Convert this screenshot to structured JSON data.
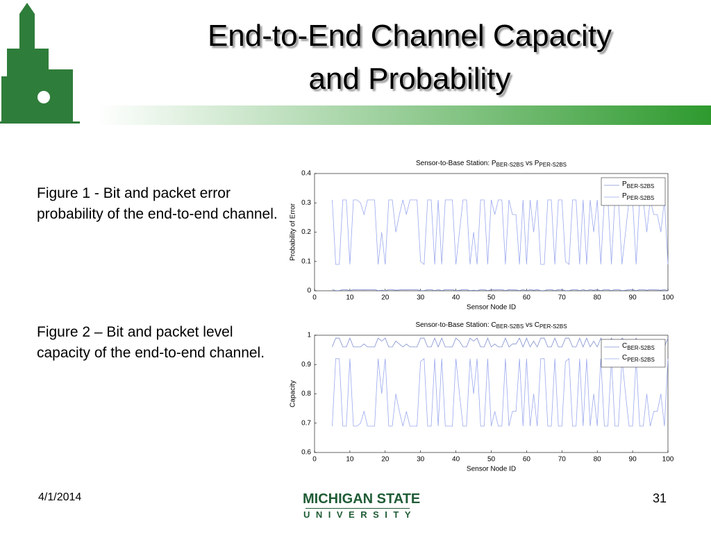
{
  "slide": {
    "title": [
      "End-to-End Channel Capacity",
      "and Probability"
    ],
    "captions": [
      "Figure 1 - Bit and packet error probability of the end-to-end channel.",
      "Figure 2 – Bit and packet level capacity of the end-to-end channel."
    ],
    "date": "4/1/2014",
    "page": "31",
    "logo": [
      "MICHIGAN STATE",
      "UNIVERSITY"
    ]
  },
  "chart_data": [
    {
      "type": "line",
      "title": [
        "Sensor-to-Base Station: P",
        "BER-S2BS",
        " vs P",
        "PER-S2BS"
      ],
      "x_label": "Sensor Node ID",
      "y_label": "Probability of Error",
      "xlim": [
        0,
        100
      ],
      "xticks": [
        0,
        10,
        20,
        30,
        40,
        50,
        60,
        70,
        80,
        90,
        100
      ],
      "ylim": [
        0,
        0.4
      ],
      "yticks": [
        0,
        0.1,
        0.2,
        0.3,
        0.4
      ],
      "legend": "upper right",
      "x": [
        5,
        6,
        7,
        8,
        9,
        10,
        11,
        12,
        13,
        14,
        15,
        16,
        17,
        18,
        19,
        20,
        21,
        22,
        23,
        24,
        25,
        26,
        27,
        28,
        29,
        30,
        31,
        32,
        33,
        34,
        35,
        36,
        37,
        38,
        39,
        40,
        41,
        42,
        43,
        44,
        45,
        46,
        47,
        48,
        49,
        50,
        51,
        52,
        53,
        54,
        55,
        56,
        57,
        58,
        59,
        60,
        61,
        62,
        63,
        64,
        65,
        66,
        67,
        68,
        69,
        70,
        71,
        72,
        73,
        74,
        75,
        76,
        77,
        78,
        79,
        80,
        81,
        82,
        83,
        84,
        85,
        86,
        87,
        88,
        89,
        90,
        91,
        92,
        93,
        94,
        95,
        96,
        97,
        98,
        99,
        100
      ],
      "series": [
        {
          "name": "P",
          "subscript": "BER-S2BS",
          "color": "#7f8fcf",
          "values": [
            0.004,
            0.001,
            0.001,
            0.004,
            0.004,
            0.001,
            0.004,
            0.004,
            0.004,
            0.003,
            0.004,
            0.004,
            0.004,
            0.001,
            0.002,
            0.001,
            0.004,
            0.004,
            0.002,
            0.003,
            0.004,
            0.003,
            0.004,
            0.004,
            0.004,
            0.001,
            0.001,
            0.004,
            0.004,
            0.001,
            0.004,
            0.001,
            0.004,
            0.004,
            0.004,
            0.001,
            0.002,
            0.004,
            0.004,
            0.001,
            0.002,
            0.001,
            0.004,
            0.004,
            0.001,
            0.004,
            0.003,
            0.004,
            0.004,
            0.001,
            0.004,
            0.003,
            0.003,
            0.001,
            0.004,
            0.001,
            0.004,
            0.002,
            0.004,
            0.001,
            0.001,
            0.004,
            0.004,
            0.001,
            0.004,
            0.004,
            0.001,
            0.001,
            0.004,
            0.004,
            0.001,
            0.004,
            0.001,
            0.004,
            0.002,
            0.004,
            0.001,
            0.004,
            0.004,
            0.001,
            0.004,
            0.004,
            0.001,
            0.002,
            0.004,
            0.004,
            0.001,
            0.004,
            0.004,
            0.002,
            0.004,
            0.003,
            0.003,
            0.002,
            0.004,
            0.001
          ]
        },
        {
          "name": "P",
          "subscript": "PER-S2BS",
          "color": "#9aa8ee",
          "values": [
            0.31,
            0.09,
            0.09,
            0.31,
            0.31,
            0.09,
            0.31,
            0.31,
            0.3,
            0.26,
            0.31,
            0.31,
            0.31,
            0.09,
            0.2,
            0.09,
            0.31,
            0.31,
            0.2,
            0.26,
            0.31,
            0.26,
            0.31,
            0.31,
            0.31,
            0.1,
            0.09,
            0.31,
            0.31,
            0.09,
            0.31,
            0.09,
            0.31,
            0.31,
            0.31,
            0.09,
            0.2,
            0.31,
            0.31,
            0.09,
            0.2,
            0.09,
            0.31,
            0.31,
            0.09,
            0.31,
            0.26,
            0.31,
            0.31,
            0.09,
            0.31,
            0.26,
            0.26,
            0.09,
            0.31,
            0.09,
            0.31,
            0.2,
            0.31,
            0.09,
            0.09,
            0.31,
            0.31,
            0.09,
            0.31,
            0.31,
            0.1,
            0.09,
            0.31,
            0.31,
            0.09,
            0.31,
            0.09,
            0.31,
            0.2,
            0.31,
            0.09,
            0.31,
            0.31,
            0.09,
            0.31,
            0.31,
            0.09,
            0.2,
            0.31,
            0.31,
            0.09,
            0.31,
            0.31,
            0.2,
            0.31,
            0.26,
            0.26,
            0.2,
            0.31,
            0.09
          ]
        }
      ]
    },
    {
      "type": "line",
      "title": [
        "Sensor-to-Base Station: C",
        "BER-S2BS",
        " vs C",
        "PER-S2BS"
      ],
      "x_label": "Sensor Node ID",
      "y_label": "Capacity",
      "xlim": [
        0,
        100
      ],
      "xticks": [
        0,
        10,
        20,
        30,
        40,
        50,
        60,
        70,
        80,
        90,
        100
      ],
      "ylim": [
        0.6,
        1
      ],
      "yticks": [
        0.6,
        0.7,
        0.8,
        0.9,
        1
      ],
      "legend": "upper right",
      "x": [
        5,
        6,
        7,
        8,
        9,
        10,
        11,
        12,
        13,
        14,
        15,
        16,
        17,
        18,
        19,
        20,
        21,
        22,
        23,
        24,
        25,
        26,
        27,
        28,
        29,
        30,
        31,
        32,
        33,
        34,
        35,
        36,
        37,
        38,
        39,
        40,
        41,
        42,
        43,
        44,
        45,
        46,
        47,
        48,
        49,
        50,
        51,
        52,
        53,
        54,
        55,
        56,
        57,
        58,
        59,
        60,
        61,
        62,
        63,
        64,
        65,
        66,
        67,
        68,
        69,
        70,
        71,
        72,
        73,
        74,
        75,
        76,
        77,
        78,
        79,
        80,
        81,
        82,
        83,
        84,
        85,
        86,
        87,
        88,
        89,
        90,
        91,
        92,
        93,
        94,
        95,
        96,
        97,
        98,
        99,
        100
      ],
      "series": [
        {
          "name": "C",
          "subscript": "BER-S2BS",
          "color": "#7f8fcf",
          "values": [
            0.96,
            0.99,
            0.99,
            0.96,
            0.96,
            0.99,
            0.96,
            0.96,
            0.96,
            0.97,
            0.96,
            0.96,
            0.96,
            0.99,
            0.98,
            0.99,
            0.96,
            0.96,
            0.98,
            0.97,
            0.96,
            0.97,
            0.96,
            0.96,
            0.96,
            0.99,
            0.99,
            0.96,
            0.96,
            0.99,
            0.96,
            0.99,
            0.96,
            0.96,
            0.96,
            0.99,
            0.98,
            0.96,
            0.96,
            0.99,
            0.98,
            0.99,
            0.96,
            0.96,
            0.99,
            0.96,
            0.97,
            0.96,
            0.96,
            0.99,
            0.96,
            0.97,
            0.97,
            0.99,
            0.96,
            0.99,
            0.96,
            0.98,
            0.96,
            0.99,
            0.99,
            0.96,
            0.96,
            0.99,
            0.96,
            0.96,
            0.99,
            0.99,
            0.96,
            0.96,
            0.99,
            0.96,
            0.99,
            0.96,
            0.98,
            0.96,
            0.99,
            0.96,
            0.96,
            0.99,
            0.96,
            0.96,
            0.99,
            0.98,
            0.96,
            0.96,
            0.99,
            0.96,
            0.96,
            0.98,
            0.96,
            0.97,
            0.97,
            0.98,
            0.96,
            0.99
          ]
        },
        {
          "name": "C",
          "subscript": "PER-S2BS",
          "color": "#9aa8ee",
          "values": [
            0.69,
            0.92,
            0.92,
            0.69,
            0.69,
            0.92,
            0.69,
            0.69,
            0.7,
            0.74,
            0.69,
            0.69,
            0.69,
            0.92,
            0.8,
            0.92,
            0.69,
            0.69,
            0.8,
            0.74,
            0.69,
            0.74,
            0.69,
            0.69,
            0.69,
            0.91,
            0.92,
            0.69,
            0.69,
            0.92,
            0.69,
            0.92,
            0.69,
            0.69,
            0.69,
            0.92,
            0.8,
            0.69,
            0.69,
            0.92,
            0.8,
            0.92,
            0.69,
            0.69,
            0.92,
            0.69,
            0.74,
            0.69,
            0.69,
            0.92,
            0.69,
            0.74,
            0.74,
            0.92,
            0.69,
            0.92,
            0.69,
            0.8,
            0.69,
            0.92,
            0.92,
            0.69,
            0.69,
            0.92,
            0.69,
            0.69,
            0.91,
            0.92,
            0.69,
            0.69,
            0.92,
            0.69,
            0.92,
            0.69,
            0.8,
            0.69,
            0.92,
            0.69,
            0.69,
            0.92,
            0.69,
            0.69,
            0.92,
            0.8,
            0.69,
            0.69,
            0.92,
            0.69,
            0.69,
            0.8,
            0.69,
            0.74,
            0.74,
            0.8,
            0.69,
            0.92
          ]
        }
      ]
    }
  ]
}
